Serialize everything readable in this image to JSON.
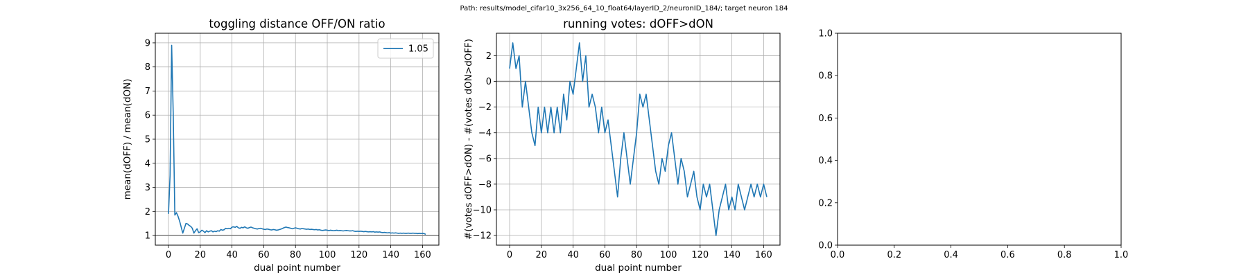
{
  "figure": {
    "suptitle": "Path: results/model_cifar10_3x256_64_10_float64/layerID_2/neuronID_184/; target neuron 184"
  },
  "chart_data": [
    {
      "type": "line",
      "title": "toggling distance OFF/ON ratio",
      "xlabel": "dual point number",
      "ylabel": "mean(dOFF) / mean(dON)",
      "xlim": [
        -8.3,
        170.3
      ],
      "ylim": [
        0.6,
        9.4
      ],
      "xticks": [
        0,
        20,
        40,
        60,
        80,
        100,
        120,
        140,
        160
      ],
      "yticks": [
        1,
        2,
        3,
        4,
        5,
        6,
        7,
        8,
        9
      ],
      "grid": true,
      "legend": {
        "location": "upper right",
        "entries": [
          "1.05"
        ]
      },
      "hline": 1,
      "series": [
        {
          "name": "1.05",
          "color": "#1f77b4",
          "x": [
            0,
            1,
            2,
            3,
            4,
            5,
            6,
            7,
            8,
            9,
            10,
            11,
            12,
            13,
            14,
            15,
            16,
            17,
            18,
            19,
            20,
            21,
            22,
            23,
            24,
            25,
            26,
            27,
            28,
            29,
            30,
            31,
            32,
            33,
            34,
            35,
            36,
            37,
            38,
            39,
            40,
            41,
            42,
            43,
            44,
            45,
            46,
            47,
            48,
            49,
            50,
            51,
            52,
            53,
            54,
            55,
            56,
            57,
            58,
            59,
            60,
            61,
            62,
            63,
            64,
            65,
            66,
            67,
            68,
            69,
            70,
            71,
            72,
            73,
            74,
            75,
            76,
            77,
            78,
            79,
            80,
            81,
            82,
            83,
            84,
            85,
            86,
            87,
            88,
            89,
            90,
            91,
            92,
            93,
            94,
            95,
            96,
            97,
            98,
            99,
            100,
            101,
            102,
            103,
            104,
            105,
            106,
            107,
            108,
            109,
            110,
            111,
            112,
            113,
            114,
            115,
            116,
            117,
            118,
            119,
            120,
            121,
            122,
            123,
            124,
            125,
            126,
            127,
            128,
            129,
            130,
            131,
            132,
            133,
            134,
            135,
            136,
            137,
            138,
            139,
            140,
            141,
            142,
            143,
            144,
            145,
            146,
            147,
            148,
            149,
            150,
            151,
            152,
            153,
            154,
            155,
            156,
            157,
            158,
            159,
            160,
            161,
            162
          ],
          "y": [
            1.9,
            3.5,
            8.9,
            6.0,
            1.85,
            1.95,
            1.8,
            1.6,
            1.35,
            1.1,
            1.3,
            1.5,
            1.48,
            1.42,
            1.38,
            1.3,
            1.1,
            1.2,
            1.28,
            1.12,
            1.15,
            1.22,
            1.18,
            1.12,
            1.2,
            1.15,
            1.18,
            1.2,
            1.15,
            1.18,
            1.16,
            1.2,
            1.18,
            1.25,
            1.22,
            1.24,
            1.3,
            1.28,
            1.3,
            1.28,
            1.35,
            1.36,
            1.34,
            1.38,
            1.32,
            1.3,
            1.34,
            1.32,
            1.36,
            1.32,
            1.3,
            1.33,
            1.35,
            1.32,
            1.3,
            1.28,
            1.27,
            1.29,
            1.3,
            1.28,
            1.26,
            1.25,
            1.27,
            1.26,
            1.24,
            1.23,
            1.25,
            1.24,
            1.22,
            1.23,
            1.25,
            1.27,
            1.3,
            1.33,
            1.35,
            1.33,
            1.32,
            1.3,
            1.28,
            1.3,
            1.32,
            1.3,
            1.28,
            1.27,
            1.29,
            1.28,
            1.27,
            1.26,
            1.27,
            1.25,
            1.26,
            1.25,
            1.24,
            1.25,
            1.23,
            1.24,
            1.22,
            1.21,
            1.22,
            1.23,
            1.22,
            1.2,
            1.22,
            1.21,
            1.2,
            1.21,
            1.22,
            1.2,
            1.21,
            1.2,
            1.19,
            1.2,
            1.21,
            1.2,
            1.19,
            1.19,
            1.2,
            1.18,
            1.17,
            1.18,
            1.17,
            1.18,
            1.17,
            1.16,
            1.17,
            1.16,
            1.15,
            1.16,
            1.15,
            1.16,
            1.14,
            1.15,
            1.14,
            1.15,
            1.13,
            1.12,
            1.13,
            1.12,
            1.11,
            1.12,
            1.1,
            1.11,
            1.1,
            1.11,
            1.1,
            1.09,
            1.1,
            1.09,
            1.1,
            1.09,
            1.09,
            1.1,
            1.09,
            1.09,
            1.1,
            1.09,
            1.09,
            1.08,
            1.09,
            1.08,
            1.09,
            1.08,
            1.05
          ]
        }
      ]
    },
    {
      "type": "line",
      "title": "running votes: dOFF>dON",
      "xlabel": "dual point number",
      "ylabel": "#(votes dOFF>dON) - #(votes dON>dOFF)",
      "xlim": [
        -8.3,
        170.3
      ],
      "ylim": [
        -12.75,
        3.75
      ],
      "xticks": [
        0,
        20,
        40,
        60,
        80,
        100,
        120,
        140,
        160
      ],
      "yticks": [
        2,
        0,
        -2,
        -4,
        -6,
        -8,
        -10,
        -12
      ],
      "grid": true,
      "hline": 0,
      "series": [
        {
          "color": "#1f77b4",
          "x": [
            0,
            2,
            4,
            6,
            8,
            10,
            12,
            14,
            16,
            18,
            20,
            22,
            24,
            26,
            28,
            30,
            32,
            34,
            36,
            38,
            40,
            42,
            44,
            46,
            48,
            50,
            52,
            54,
            56,
            58,
            60,
            62,
            64,
            66,
            68,
            70,
            72,
            74,
            76,
            78,
            80,
            82,
            84,
            86,
            88,
            90,
            92,
            94,
            96,
            98,
            100,
            102,
            104,
            106,
            108,
            110,
            112,
            114,
            116,
            118,
            120,
            122,
            124,
            126,
            128,
            130,
            132,
            134,
            136,
            138,
            140,
            142,
            144,
            146,
            148,
            150,
            152,
            154,
            156,
            158,
            160,
            162
          ],
          "y": [
            1,
            3,
            1,
            2,
            -2,
            0,
            -2,
            -4,
            -5,
            -2,
            -4,
            -2,
            -4,
            -2,
            -4,
            -2,
            -4,
            -1,
            -3,
            0,
            -1,
            1,
            3,
            0,
            2,
            -2,
            -1,
            -2,
            -4,
            -2,
            -4,
            -3,
            -5,
            -7,
            -9,
            -6,
            -4,
            -6,
            -8,
            -6,
            -4,
            -1,
            -2,
            -1,
            -3,
            -5,
            -7,
            -8,
            -6,
            -7,
            -5,
            -4,
            -6,
            -8,
            -6,
            -7,
            -9,
            -8,
            -7,
            -9,
            -10,
            -8,
            -9,
            -8,
            -10,
            -12,
            -10,
            -9,
            -8,
            -10,
            -9,
            -10,
            -8,
            -9,
            -10,
            -9,
            -8,
            -9,
            -8,
            -9,
            -8,
            -9
          ]
        }
      ]
    },
    {
      "type": "line",
      "title": "",
      "xlabel": "",
      "ylabel": "",
      "xlim": [
        0,
        1
      ],
      "ylim": [
        0,
        1
      ],
      "xticks": [
        0.0,
        0.2,
        0.4,
        0.6,
        0.8,
        1.0
      ],
      "yticks": [
        0.0,
        0.2,
        0.4,
        0.6,
        0.8,
        1.0
      ],
      "xtick_labels": [
        "0.0",
        "0.2",
        "0.4",
        "0.6",
        "0.8",
        "1.0"
      ],
      "ytick_labels": [
        "0.0",
        "0.2",
        "0.4",
        "0.6",
        "0.8",
        "1.0"
      ],
      "grid": false,
      "series": []
    }
  ]
}
